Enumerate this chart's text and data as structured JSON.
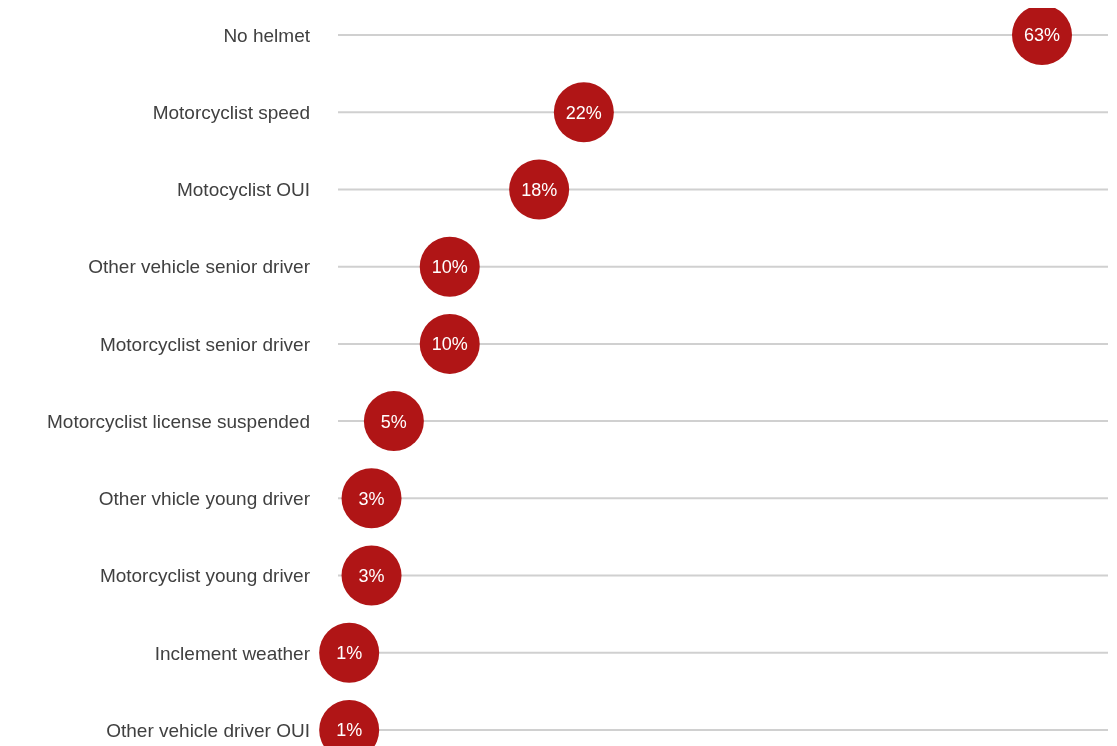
{
  "chart_data": {
    "type": "scatter",
    "categories": [
      "No helmet",
      "Motorcyclist speed",
      "Motocyclist OUI",
      "Other vehicle senior driver",
      "Motorcyclist senior driver",
      "Motorcyclist license suspended",
      "Other vhicle young driver",
      "Motorcyclist young driver",
      "Inclement weather",
      "Other vehicle driver OUI"
    ],
    "values": [
      63,
      22,
      18,
      10,
      10,
      5,
      3,
      3,
      1,
      1
    ],
    "value_labels": [
      "63%",
      "22%",
      "18%",
      "10%",
      "10%",
      "5%",
      "3%",
      "3%",
      "1%",
      "1%"
    ],
    "color": "#b01516",
    "marker": "circle",
    "grid": "y",
    "orientation": "horizontal"
  }
}
